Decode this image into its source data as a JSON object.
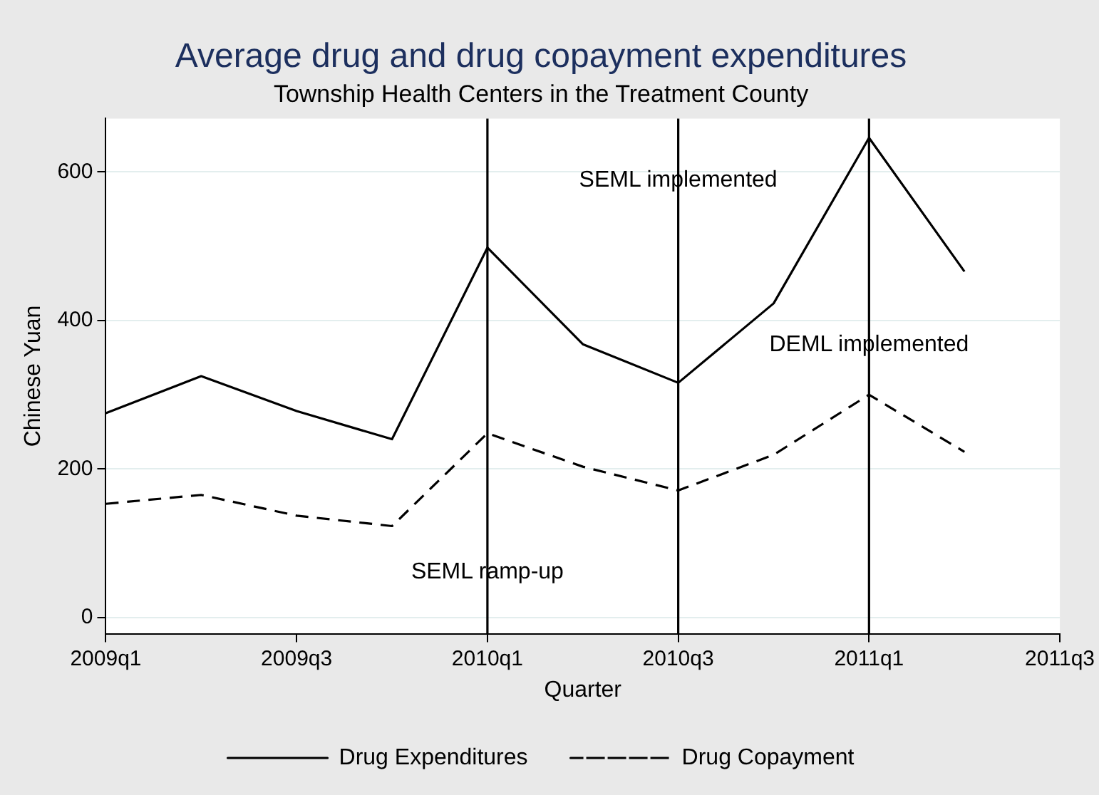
{
  "chart_data": {
    "type": "line",
    "title": "Average drug and drug copayment expenditures",
    "subtitle": "Township Health Centers in the Treatment County",
    "xlabel": "Quarter",
    "ylabel": "Chinese Yuan",
    "categories": [
      "2009q1",
      null,
      "2009q3",
      null,
      "2010q1",
      null,
      "2010q3",
      null,
      "2011q1",
      null,
      "2011q3"
    ],
    "series": [
      {
        "name": "Drug Expenditures",
        "color": "#000000",
        "line_style": "solid",
        "values": [
          275,
          325,
          278,
          240,
          498,
          368,
          316,
          423,
          646,
          466,
          null
        ]
      },
      {
        "name": "Drug Copayment",
        "color": "#000000",
        "line_style": "dashed",
        "values": [
          153,
          165,
          137,
          123,
          248,
          203,
          171,
          219,
          300,
          223,
          null
        ]
      }
    ],
    "ylim": [
      -22,
      672
    ],
    "yticks": [
      0,
      200,
      400,
      600
    ],
    "ref_lines": [
      {
        "axis": "x",
        "value": "2010q1",
        "label": "SEML ramp-up",
        "color": "#000000"
      },
      {
        "axis": "x",
        "value": "2010q3",
        "label": "SEML implemented",
        "color": "#000000"
      },
      {
        "axis": "x",
        "value": "2011q1",
        "label": "DEML implemented",
        "color": "#000000"
      }
    ],
    "grid": "y",
    "legend": "bottom",
    "marker": "none"
  }
}
